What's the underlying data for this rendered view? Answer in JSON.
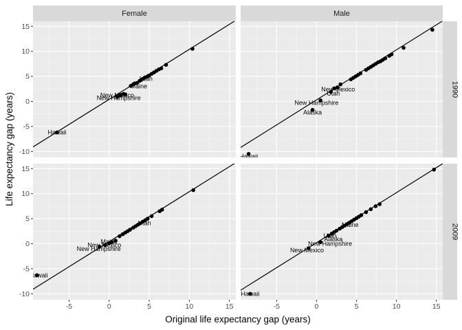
{
  "chart_data": {
    "type": "scatter",
    "xlabel": "Original life expectancy gap (years)",
    "ylabel": "Life expectancy gap (years)",
    "xlim": [
      -9.5,
      15.8
    ],
    "ylim": [
      -11.2,
      16.0
    ],
    "x_ticks": [
      -5,
      0,
      5,
      10,
      15
    ],
    "y_ticks": [
      -10,
      -5,
      0,
      5,
      10,
      15
    ],
    "x_tick_labels": [
      "-5",
      "0",
      "5",
      "10",
      "15"
    ],
    "y_tick_labels": [
      "-10",
      "-5",
      "0",
      "5",
      "10",
      "15"
    ],
    "grid": true,
    "columns": [
      "Female",
      "Male"
    ],
    "rows": [
      "1990",
      "2009"
    ],
    "panels": [
      {
        "column": "Female",
        "row": "1990",
        "line": {
          "intercept": 0.4,
          "slope": 1
        },
        "points": [
          [
            -6.5,
            -6.2
          ],
          [
            1.0,
            0.9
          ],
          [
            1.3,
            1.2
          ],
          [
            1.5,
            1.3
          ],
          [
            1.8,
            1.5
          ],
          [
            2.0,
            1.4
          ],
          [
            2.7,
            3.1
          ],
          [
            3.0,
            3.4
          ],
          [
            3.2,
            3.6
          ],
          [
            3.5,
            3.7
          ],
          [
            3.8,
            4.1
          ],
          [
            4.0,
            4.3
          ],
          [
            4.2,
            4.5
          ],
          [
            4.5,
            4.8
          ],
          [
            4.8,
            5.0
          ],
          [
            5.0,
            5.2
          ],
          [
            5.3,
            5.5
          ],
          [
            5.6,
            5.8
          ],
          [
            5.9,
            6.1
          ],
          [
            6.2,
            6.4
          ],
          [
            6.5,
            6.6
          ],
          [
            7.1,
            7.3
          ],
          [
            10.4,
            10.5
          ]
        ],
        "labels": [
          {
            "text": "Hawaii",
            "x": -6.5,
            "y": -6.2
          },
          {
            "text": "New Mexico",
            "x": 1.0,
            "y": 1.2
          },
          {
            "text": "New Hampshire",
            "x": 1.2,
            "y": 0.7
          },
          {
            "text": "Utah",
            "x": 4.6,
            "y": 4.5
          },
          {
            "text": "Maine",
            "x": 3.7,
            "y": 3.0
          }
        ]
      },
      {
        "column": "Male",
        "row": "1990",
        "line": {
          "intercept": 0.3,
          "slope": 1
        },
        "points": [
          [
            -8.5,
            -10.5
          ],
          [
            -0.5,
            -1.7
          ],
          [
            0.5,
            0.2
          ],
          [
            1.8,
            1.9
          ],
          [
            2.2,
            2.6
          ],
          [
            2.6,
            2.8
          ],
          [
            3.0,
            3.4
          ],
          [
            4.3,
            4.4
          ],
          [
            4.6,
            4.7
          ],
          [
            4.9,
            5.0
          ],
          [
            5.2,
            5.3
          ],
          [
            5.5,
            5.6
          ],
          [
            6.2,
            6.3
          ],
          [
            6.5,
            6.6
          ],
          [
            6.8,
            6.9
          ],
          [
            7.1,
            7.2
          ],
          [
            7.4,
            7.5
          ],
          [
            7.7,
            7.8
          ],
          [
            8.0,
            8.0
          ],
          [
            8.3,
            8.3
          ],
          [
            8.6,
            8.6
          ],
          [
            9.1,
            9.1
          ],
          [
            9.4,
            9.4
          ],
          [
            10.9,
            10.7
          ],
          [
            14.5,
            14.3
          ]
        ],
        "labels": [
          {
            "text": "Hawaii",
            "x": -8.5,
            "y": -11.0
          },
          {
            "text": "Alaska",
            "x": -0.5,
            "y": -2.2
          },
          {
            "text": "New Hampshire",
            "x": 0.0,
            "y": -0.3
          },
          {
            "text": "Utah",
            "x": 2.1,
            "y": 1.6
          },
          {
            "text": "New Mexico",
            "x": 2.7,
            "y": 2.4
          }
        ]
      },
      {
        "column": "Female",
        "row": "2009",
        "line": {
          "intercept": 0.4,
          "slope": 1
        },
        "points": [
          [
            -9.0,
            -6.3
          ],
          [
            -1.2,
            -0.6
          ],
          [
            -0.5,
            -0.3
          ],
          [
            0.0,
            0.1
          ],
          [
            0.3,
            0.3
          ],
          [
            0.8,
            0.6
          ],
          [
            1.3,
            1.5
          ],
          [
            1.7,
            1.9
          ],
          [
            2.0,
            2.2
          ],
          [
            2.3,
            2.5
          ],
          [
            2.6,
            2.8
          ],
          [
            3.0,
            3.2
          ],
          [
            3.3,
            3.5
          ],
          [
            3.6,
            3.8
          ],
          [
            3.9,
            4.1
          ],
          [
            4.2,
            4.4
          ],
          [
            4.5,
            4.7
          ],
          [
            4.8,
            5.0
          ],
          [
            5.3,
            5.5
          ],
          [
            6.3,
            6.5
          ],
          [
            6.6,
            6.8
          ],
          [
            10.5,
            10.7
          ]
        ],
        "labels": [
          {
            "text": "Hawaii",
            "x": -8.8,
            "y": -6.3
          },
          {
            "text": "Maine",
            "x": 0.0,
            "y": 0.4
          },
          {
            "text": "New Mexico",
            "x": -0.6,
            "y": -0.3
          },
          {
            "text": "New Hampshire",
            "x": -1.3,
            "y": -1.0
          },
          {
            "text": "Utah",
            "x": 4.4,
            "y": 4.1
          }
        ]
      },
      {
        "column": "Male",
        "row": "2009",
        "line": {
          "intercept": 0.2,
          "slope": 1
        },
        "points": [
          [
            -8.3,
            -10.0
          ],
          [
            -1.0,
            -0.9
          ],
          [
            0.5,
            0.3
          ],
          [
            1.5,
            1.6
          ],
          [
            1.9,
            2.0
          ],
          [
            2.2,
            2.3
          ],
          [
            2.5,
            2.6
          ],
          [
            2.9,
            3.0
          ],
          [
            3.2,
            3.3
          ],
          [
            3.5,
            3.6
          ],
          [
            3.8,
            3.9
          ],
          [
            4.1,
            4.2
          ],
          [
            4.4,
            4.5
          ],
          [
            4.7,
            4.8
          ],
          [
            5.0,
            5.1
          ],
          [
            5.3,
            5.4
          ],
          [
            5.6,
            5.7
          ],
          [
            6.2,
            6.3
          ],
          [
            6.8,
            6.9
          ],
          [
            7.4,
            7.5
          ],
          [
            7.9,
            7.9
          ],
          [
            14.7,
            14.8
          ]
        ],
        "labels": [
          {
            "text": "Hawaii",
            "x": -8.3,
            "y": -10.0
          },
          {
            "text": "Maine",
            "x": 4.2,
            "y": 3.8
          },
          {
            "text": "Utah",
            "x": 1.7,
            "y": 1.6
          },
          {
            "text": "Alaska",
            "x": 2.1,
            "y": 0.9
          },
          {
            "text": "New Hampshire",
            "x": 1.7,
            "y": 0.0
          },
          {
            "text": "New Mexico",
            "x": -1.2,
            "y": -1.3
          }
        ]
      }
    ]
  }
}
